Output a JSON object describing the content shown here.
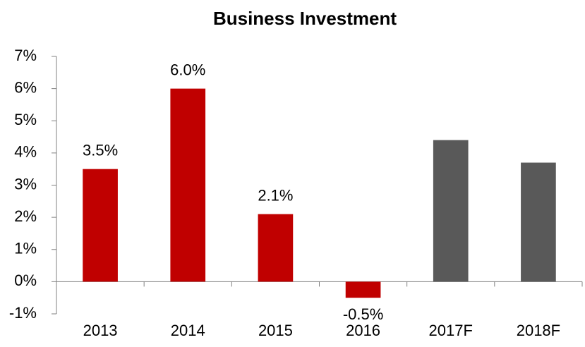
{
  "chart_data": {
    "type": "bar",
    "title": "Business Investment",
    "categories": [
      "2013",
      "2014",
      "2015",
      "2016",
      "2017F",
      "2018F"
    ],
    "values": [
      3.5,
      6.0,
      2.1,
      -0.5,
      4.4,
      3.7
    ],
    "value_labels": [
      "3.5%",
      "6.0%",
      "2.1%",
      "-0.5%",
      null,
      null
    ],
    "colors": [
      "#c00000",
      "#c00000",
      "#c00000",
      "#c00000",
      "#595959",
      "#595959"
    ],
    "ylim": [
      -1,
      7
    ],
    "yticks": [
      {
        "value": -1,
        "label": "-1%"
      },
      {
        "value": 0,
        "label": "0%"
      },
      {
        "value": 1,
        "label": "1%"
      },
      {
        "value": 2,
        "label": "2%"
      },
      {
        "value": 3,
        "label": "3%"
      },
      {
        "value": 4,
        "label": "4%"
      },
      {
        "value": 5,
        "label": "5%"
      },
      {
        "value": 6,
        "label": "6%"
      },
      {
        "value": 7,
        "label": "7%"
      }
    ],
    "grid": false
  }
}
